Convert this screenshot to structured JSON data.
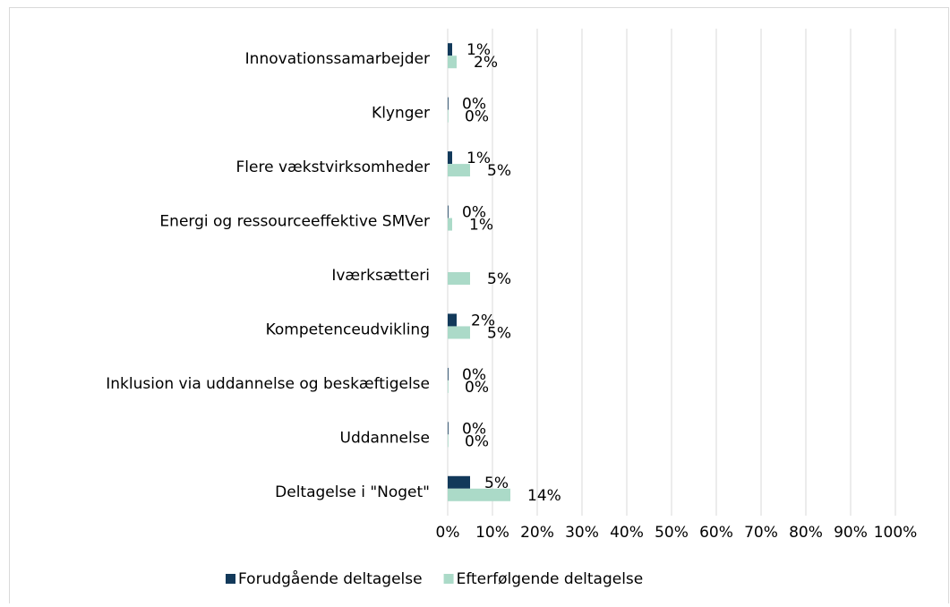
{
  "chart_data": {
    "type": "barh",
    "categories": [
      "Innovationssamarbejder",
      "Klynger",
      "Flere vækstvirksomheder",
      "Energi og ressourceeffektive SMVer",
      "Iværksætteri",
      "Kompetenceudvikling",
      "Inklusion via uddannelse og beskæftigelse",
      "Uddannelse",
      "Deltagelse i \"Noget\""
    ],
    "series": [
      {
        "name": "Forudgående deltagelse",
        "color": "#12395a",
        "values": [
          1,
          0,
          1,
          0,
          null,
          2,
          0,
          0,
          5
        ],
        "value_labels": [
          "1%",
          "0%",
          "1%",
          "0%",
          null,
          "2%",
          "0%",
          "0%",
          "5%"
        ]
      },
      {
        "name": "Efterfølgende deltagelse",
        "color": "#abdac8",
        "values": [
          2,
          0,
          5,
          1,
          5,
          5,
          0,
          0,
          14
        ],
        "value_labels": [
          "2%",
          "0%",
          "5%",
          "1%",
          "5%",
          "5%",
          "0%",
          "0%",
          "14%"
        ]
      }
    ],
    "xlim": [
      0,
      100
    ],
    "xticks": [
      {
        "value": 0,
        "label": "0%"
      },
      {
        "value": 10,
        "label": "10%"
      },
      {
        "value": 20,
        "label": "20%"
      },
      {
        "value": 30,
        "label": "30%"
      },
      {
        "value": 40,
        "label": "40%"
      },
      {
        "value": 50,
        "label": "50%"
      },
      {
        "value": 60,
        "label": "60%"
      },
      {
        "value": 70,
        "label": "70%"
      },
      {
        "value": 80,
        "label": "80%"
      },
      {
        "value": 90,
        "label": "90%"
      },
      {
        "value": 100,
        "label": "100%"
      }
    ],
    "grid": true,
    "legend": "bottom"
  }
}
